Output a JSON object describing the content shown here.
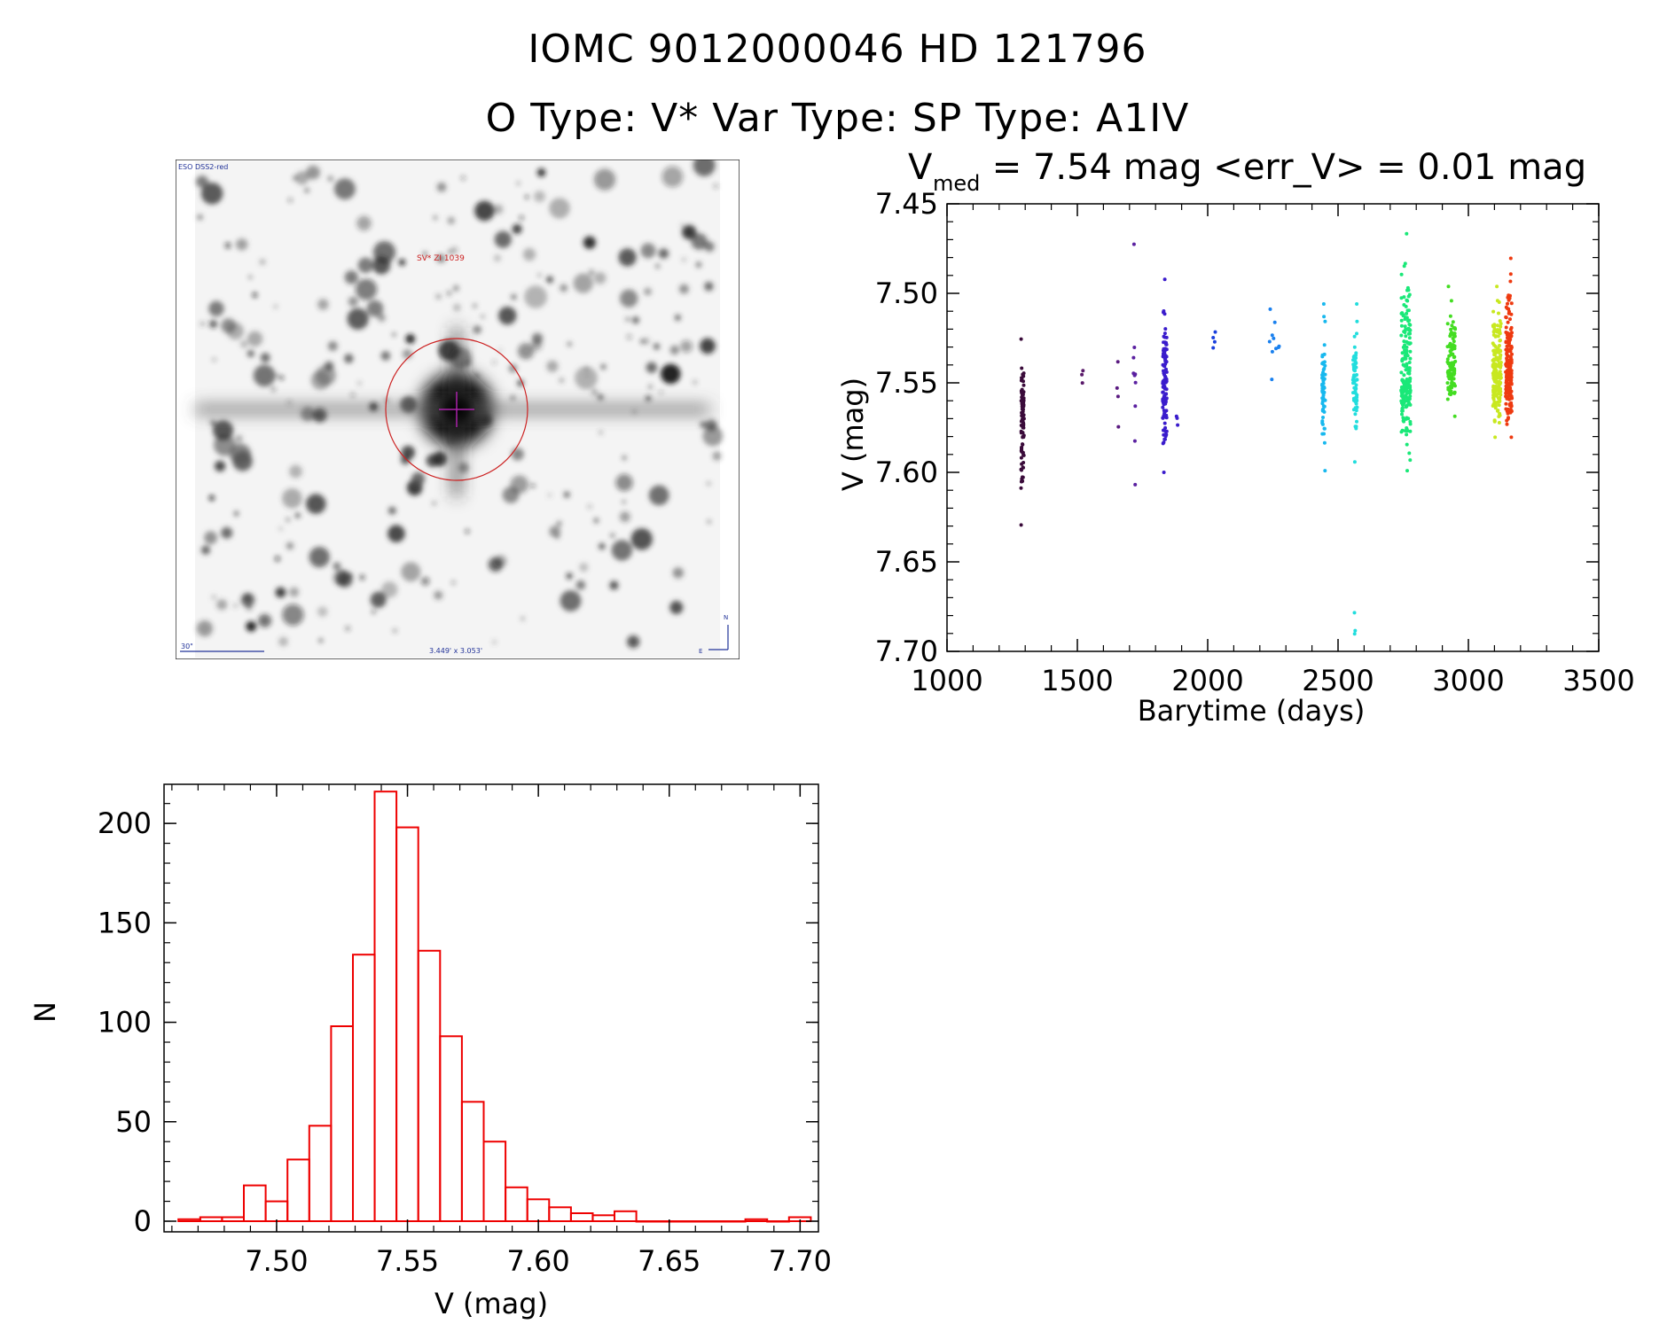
{
  "header": {
    "title_line1": "IOMC 9012000046    HD 121796",
    "title_line2": "O Type: V*  Var Type:    SP Type: A1IV"
  },
  "sky_image": {
    "survey_label": "ESO DSS2-red",
    "object_label": "SV* ZI 1039",
    "scale_label": "30\"",
    "size_label": "3.449' x 3.053'",
    "north_label": "N",
    "east_label": "E",
    "circle_color": "#cc2222",
    "crosshair_color": "#aa22aa"
  },
  "chart_data": [
    {
      "type": "scatter",
      "title_main": "V",
      "title_sub": "med",
      "title_rest": " = 7.54 mag <err_V> = 0.01 mag",
      "xlabel": "Barytime (days)",
      "ylabel": "V (mag)",
      "xlim": [
        1000,
        3500
      ],
      "ylim": [
        7.7,
        7.45
      ],
      "y_inverted": true,
      "xticks": [
        "1000",
        "1500",
        "2000",
        "2500",
        "3000",
        "3500"
      ],
      "yticks": [
        "7.45",
        "7.50",
        "7.55",
        "7.60",
        "7.65",
        "7.70"
      ],
      "color_scale": "rainbow by time",
      "groups": [
        {
          "x_center": 1290,
          "x_spread": 6,
          "n": 90,
          "y_min": 7.522,
          "y_max": 7.628,
          "y_center": 7.565,
          "color": "#3a0b3a"
        },
        {
          "x_center": 1520,
          "x_spread": 4,
          "n": 3,
          "y_min": 7.54,
          "y_max": 7.547,
          "y_center": 7.543,
          "color": "#5a1a6a"
        },
        {
          "x_center": 1655,
          "x_spread": 4,
          "n": 4,
          "y_min": 7.535,
          "y_max": 7.572,
          "y_center": 7.55,
          "color": "#5a1a80"
        },
        {
          "x_center": 1720,
          "x_spread": 5,
          "n": 10,
          "y_min": 7.468,
          "y_max": 7.605,
          "y_center": 7.55,
          "color": "#5a20a0"
        },
        {
          "x_center": 1835,
          "x_spread": 8,
          "n": 110,
          "y_min": 7.488,
          "y_max": 7.598,
          "y_center": 7.545,
          "color": "#3a1ccc"
        },
        {
          "x_center": 1880,
          "x_spread": 6,
          "n": 3,
          "y_min": 7.566,
          "y_max": 7.571,
          "y_center": 7.568,
          "color": "#3a1ccc"
        },
        {
          "x_center": 2025,
          "x_spread": 4,
          "n": 4,
          "y_min": 7.518,
          "y_max": 7.527,
          "y_center": 7.522,
          "color": "#1a40dd"
        },
        {
          "x_center": 2255,
          "x_spread": 20,
          "n": 10,
          "y_min": 7.505,
          "y_max": 7.545,
          "y_center": 7.522,
          "color": "#1a80ee"
        },
        {
          "x_center": 2445,
          "x_spread": 6,
          "n": 60,
          "y_min": 7.502,
          "y_max": 7.597,
          "y_center": 7.555,
          "color": "#18b8ee"
        },
        {
          "x_center": 2565,
          "x_spread": 8,
          "n": 70,
          "y_min": 7.502,
          "y_max": 7.592,
          "y_center": 7.55,
          "color": "#22dddd"
        },
        {
          "x_center": 2565,
          "x_spread": 2,
          "n": 3,
          "y_min": 7.678,
          "y_max": 7.69,
          "y_center": 7.685,
          "color": "#22dddd"
        },
        {
          "x_center": 2760,
          "x_spread": 18,
          "n": 200,
          "y_min": 7.462,
          "y_max": 7.597,
          "y_center": 7.545,
          "color": "#1ae878"
        },
        {
          "x_center": 2935,
          "x_spread": 15,
          "n": 110,
          "y_min": 7.492,
          "y_max": 7.566,
          "y_center": 7.54,
          "color": "#44dd22"
        },
        {
          "x_center": 3110,
          "x_spread": 16,
          "n": 180,
          "y_min": 7.492,
          "y_max": 7.578,
          "y_center": 7.542,
          "color": "#c8e820"
        },
        {
          "x_center": 3155,
          "x_spread": 12,
          "n": 200,
          "y_min": 7.476,
          "y_max": 7.578,
          "y_center": 7.54,
          "color": "#ee3a10"
        }
      ]
    },
    {
      "type": "bar",
      "subtype": "histogram",
      "xlabel": "V (mag)",
      "ylabel": "N",
      "xlim": [
        7.457,
        7.707
      ],
      "ylim": [
        0,
        225
      ],
      "bin_width": 0.00833,
      "bin_start": 7.4625,
      "xticks": [
        "7.50",
        "7.55",
        "7.60",
        "7.65",
        "7.70"
      ],
      "yticks": [
        "0",
        "50",
        "100",
        "150",
        "200"
      ],
      "bar_color": "#ee0000",
      "values": [
        1,
        2,
        2,
        18,
        10,
        31,
        48,
        98,
        134,
        216,
        198,
        136,
        93,
        60,
        40,
        17,
        11,
        7,
        4,
        3,
        5,
        0,
        0,
        0,
        0,
        0,
        1,
        0,
        2
      ]
    }
  ]
}
